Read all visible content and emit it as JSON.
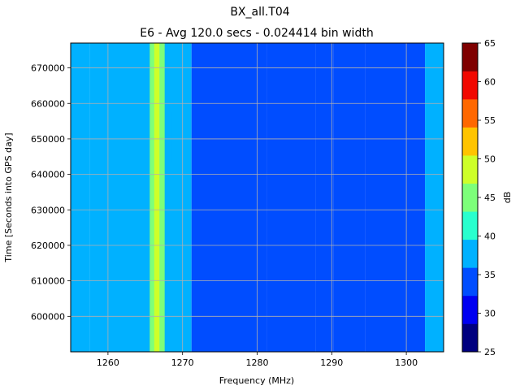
{
  "chart_data": {
    "type": "heatmap",
    "title": "BX_all.T04",
    "subtitle": "E6 - Avg 120.0 secs - 0.024414 bin width",
    "xlabel": "Frequency (MHz)",
    "ylabel": "Time [Seconds into GPS day]",
    "colorbar_label": "dB",
    "xlim": [
      1255,
      1305
    ],
    "ylim": [
      590000,
      677000
    ],
    "x_ticks": [
      1260,
      1270,
      1280,
      1290,
      1300
    ],
    "y_ticks": [
      600000,
      610000,
      620000,
      630000,
      640000,
      650000,
      660000,
      670000
    ],
    "colorbar_range": [
      25,
      65
    ],
    "colorbar_ticks": [
      25,
      30,
      35,
      40,
      45,
      50,
      55,
      60,
      65
    ],
    "grid": true,
    "bands": [
      {
        "x": [
          1255,
          1257.6
        ],
        "level_db": 36.5
      },
      {
        "x": [
          1257.6,
          1271.2
        ],
        "level_db": 36.5
      },
      {
        "x": [
          1265.6,
          1267.6
        ],
        "level_db": 43
      },
      {
        "x": [
          1266.2,
          1266.9
        ],
        "level_db": 48
      },
      {
        "x": [
          1259.5,
          1262.5
        ],
        "level_db": 37.5
      },
      {
        "x": [
          1271.2,
          1281.3
        ],
        "level_db": 33.5
      },
      {
        "x": [
          1281.3,
          1287.8
        ],
        "level_db": 31.5
      },
      {
        "x": [
          1287.8,
          1290.2
        ],
        "level_db": 33.5
      },
      {
        "x": [
          1290.2,
          1294.5
        ],
        "level_db": 32
      },
      {
        "x": [
          1294.5,
          1302.5
        ],
        "level_db": 33.5
      },
      {
        "x": [
          1302.5,
          1305
        ],
        "level_db": 36.5
      }
    ],
    "features": [
      {
        "x": 1268.5,
        "y": [
          643500,
          657500
        ],
        "level_db": 38
      }
    ],
    "colors": {
      "frame": "#000000",
      "grid": "#b0b0b0",
      "jet": [
        "#00007f",
        "#0000f1",
        "#004dff",
        "#00b1ff",
        "#29ffce",
        "#7dff7a",
        "#ceff29",
        "#ffc400",
        "#ff6800",
        "#f10800",
        "#7f0000"
      ]
    }
  }
}
